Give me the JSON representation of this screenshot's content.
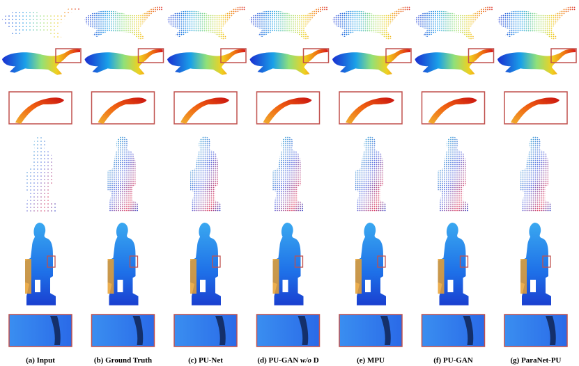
{
  "figure": {
    "captions": [
      {
        "parts": [
          "(a) Input"
        ]
      },
      {
        "parts": [
          "(b) Ground Truth"
        ]
      },
      {
        "parts": [
          "(c) PU-Net"
        ]
      },
      {
        "parts": [
          "(d) PU-GAN",
          "w/o",
          "D"
        ]
      },
      {
        "parts": [
          "(e) MPU"
        ]
      },
      {
        "parts": [
          "(f) PU-GAN"
        ]
      },
      {
        "parts": [
          "(g) ParaNet-PU"
        ]
      }
    ]
  }
}
